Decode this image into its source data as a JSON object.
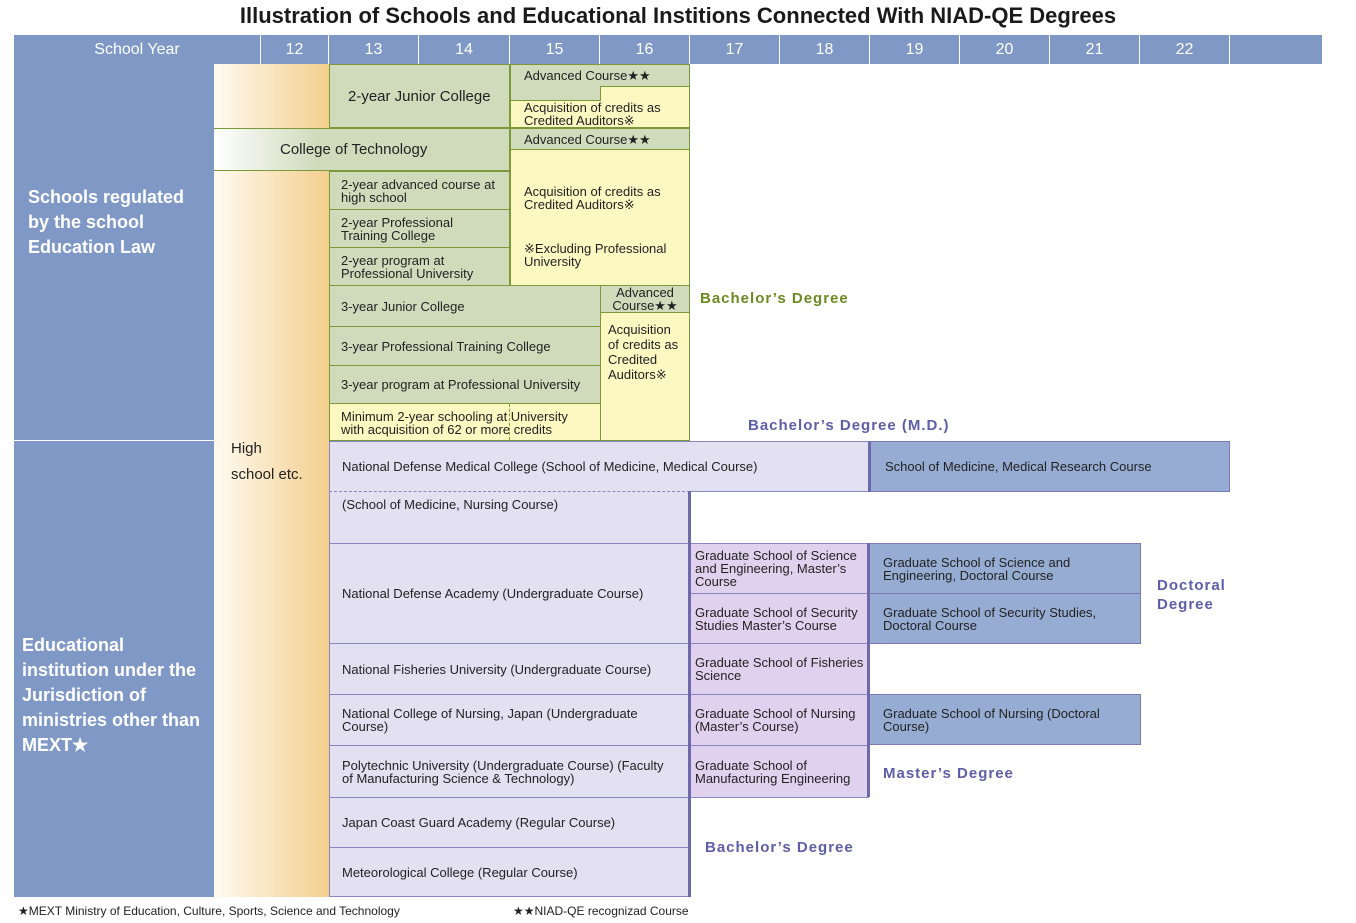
{
  "title": "Illustration of Schools and Educational Institions Connected With NIAD-QE Degrees",
  "header": {
    "school_year": "School Year",
    "years": [
      "12",
      "13",
      "14",
      "15",
      "16",
      "17",
      "18",
      "19",
      "20",
      "21",
      "22"
    ]
  },
  "sidebar": {
    "upper": "Schools regulated by the school Education Law",
    "lower": "Educational institution under the Jurisdiction of ministries other than MEXT★"
  },
  "high_school": [
    "High",
    "school etc."
  ],
  "upper": {
    "junior_college_2": "2-year Junior College",
    "advanced_1": "Advanced Course★★",
    "credits_1": "Acquisition of credits as Credited Auditors※",
    "college_tech": "College of Technology",
    "advanced_2": "Advanced Course★★",
    "credits_2": "Acquisition of credits as Credited Auditors※",
    "excluding": "※Excluding Professional University",
    "adv_high": "2-year advanced course at high school",
    "ptc_2": "2-year Professional Training College",
    "pu_2": "2-year program at Professional University",
    "junior_college_3": "3-year Junior College",
    "advanced_3": "Advanced Course★★",
    "ptc_3": "3-year Professional Training College",
    "pu_3": "3-year program at Professional University",
    "credits_3": "Acquisition of credits as Credited Auditors※",
    "minimum": "Minimum 2-year schooling at University with acquisition of 62 or more credits",
    "bachelor": "Bachelor’s Degree",
    "bachelor_md": "Bachelor’s Degree (M.D.)"
  },
  "lower": {
    "ndmc": "National Defense Medical College (School of Medicine, Medical Course)",
    "ndmc_research": "School of Medicine, Medical Research Course",
    "nursing": "(School of Medicine, Nursing Course)",
    "nda": "National Defense Academy (Undergraduate Course)",
    "gs_sci_m": "Graduate School of Science and Engineering, Master’s Course",
    "gs_sec_m": "Graduate School of Security Studies Master’s Course",
    "gs_sci_d": "Graduate School of Science and Engineering, Doctoral Course",
    "gs_sec_d": "Graduate School of Security Studies, Doctoral Course",
    "nfu": "National Fisheries University (Undergraduate Course)",
    "gs_fish": "Graduate School of Fisheries Science",
    "ncn": "National College of Nursing, Japan (Undergraduate Course)",
    "gs_nurse_m": "Graduate School of Nursing (Master’s Course)",
    "gs_nurse_d": "Graduate School of Nursing (Doctoral Course)",
    "poly": "Polytechnic University (Undergraduate Course) (Faculty of Manufacturing Science & Technology)",
    "gs_manu": "Graduate School of Manufacturing Engineering",
    "coast": "Japan Coast Guard Academy (Regular Course)",
    "meteo": "Meteorological College (Regular Course)",
    "doctoral": "Doctoral Degree",
    "master": "Master’s Degree",
    "bachelor": "Bachelor’s Degree"
  },
  "footer": {
    "mext": "★MEXT Ministry of Education, Culture, Sports, Science and Technology",
    "niad": "★★NIAD-QE recognizad Course"
  },
  "colors": {
    "header": "#7f98c6",
    "green_box": "#d0dbbc",
    "yellow_box": "#fdf8c2",
    "lavender_box": "#e3e0f2",
    "master_box": "#e0d2ef",
    "doctoral_box": "#96acd3",
    "bachelor_label": "#6b8a1f",
    "degree_label": "#5e5ea8"
  }
}
